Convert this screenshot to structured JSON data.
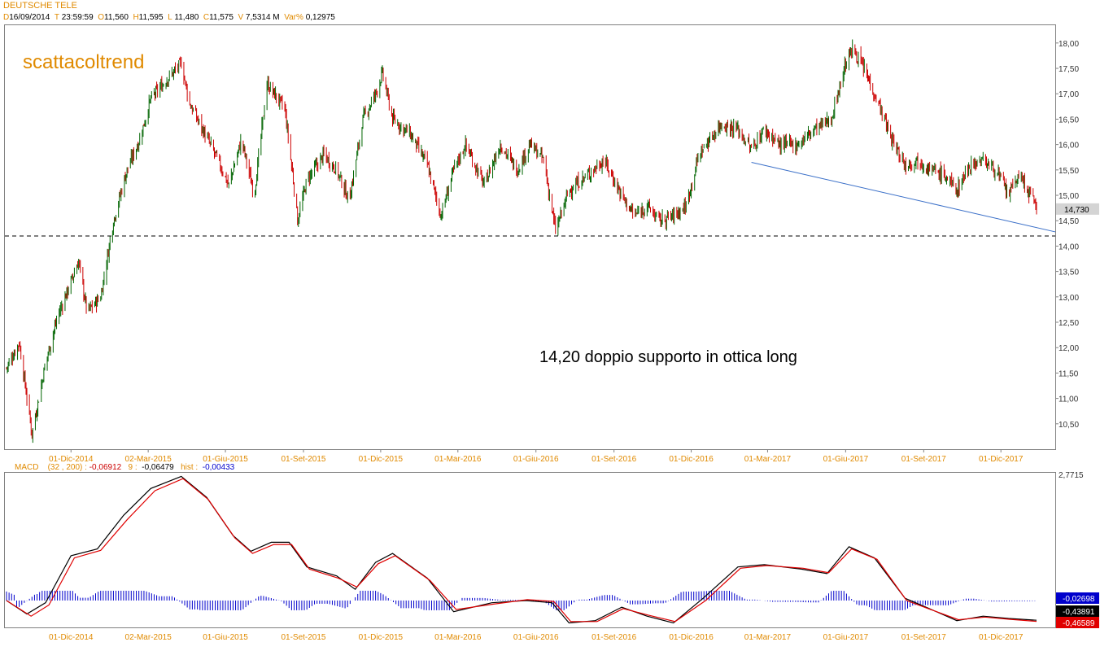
{
  "header": {
    "title": "DEUTSCHE TELE",
    "fields": [
      {
        "k": "D",
        "v": "16/09/2014"
      },
      {
        "k": "T",
        "v": "23:59:59"
      },
      {
        "k": "O",
        "v": "11,560"
      },
      {
        "k": "H",
        "v": "11,595"
      },
      {
        "k": "L",
        "v": "11,480"
      },
      {
        "k": "C",
        "v": "11,575"
      },
      {
        "k": "V",
        "v": "7,5314 M"
      },
      {
        "k": "Var%",
        "v": "0,12975"
      }
    ]
  },
  "watermark": "scattacoltrend",
  "annotation": "14,20 doppio supporto in ottica long",
  "macd_header": {
    "label": "MACD",
    "params": "(32 , 200) :",
    "macd_value": "-0,06912",
    "signal_label": "9 :",
    "signal_value": "-0,06479",
    "hist_label": "hist :",
    "hist_value": "-0,00433"
  },
  "colors": {
    "accent": "#e08a00",
    "bull": "#006400",
    "bear": "#cc0000",
    "trendline": "#3a6fc8",
    "macd_line": "#000000",
    "signal_line": "#e00000",
    "histogram": "#0000cc"
  },
  "chart_data": [
    {
      "type": "candlestick",
      "title": "DEUTSCHE TELE",
      "x_labels": [
        "01-Dic-2014",
        "02-Mar-2015",
        "01-Giu-2015",
        "01-Set-2015",
        "01-Dic-2015",
        "01-Mar-2016",
        "01-Giu-2016",
        "01-Set-2016",
        "01-Dic-2016",
        "01-Mar-2017",
        "01-Giu-2017",
        "01-Set-2017",
        "01-Dic-2017"
      ],
      "y_ticks": [
        "10,50",
        "11,00",
        "11,50",
        "12,00",
        "12,50",
        "13,00",
        "13,50",
        "14,00",
        "14,50",
        "15,00",
        "15,50",
        "16,00",
        "16,50",
        "17,00",
        "17,50",
        "18,00"
      ],
      "ylim": [
        10.0,
        18.35
      ],
      "last_price": "14,730",
      "support_level": 14.2,
      "price_path": [
        [
          "2014-09-16",
          11.6
        ],
        [
          "2014-10-01",
          12.1
        ],
        [
          "2014-10-16",
          10.3
        ],
        [
          "2014-11-01",
          11.7
        ],
        [
          "2014-11-15",
          12.6
        ],
        [
          "2014-12-01",
          13.3
        ],
        [
          "2014-12-10",
          13.7
        ],
        [
          "2014-12-20",
          12.7
        ],
        [
          "2015-01-05",
          13.0
        ],
        [
          "2015-01-20",
          14.5
        ],
        [
          "2015-02-05",
          15.5
        ],
        [
          "2015-02-20",
          16.1
        ],
        [
          "2015-03-05",
          16.9
        ],
        [
          "2015-03-25",
          17.3
        ],
        [
          "2015-04-10",
          17.6
        ],
        [
          "2015-04-20",
          16.8
        ],
        [
          "2015-05-05",
          16.3
        ],
        [
          "2015-05-20",
          15.8
        ],
        [
          "2015-06-05",
          15.2
        ],
        [
          "2015-06-20",
          16.1
        ],
        [
          "2015-07-05",
          15.0
        ],
        [
          "2015-07-20",
          17.2
        ],
        [
          "2015-08-10",
          16.7
        ],
        [
          "2015-08-20",
          15.3
        ],
        [
          "2015-08-25",
          14.5
        ],
        [
          "2015-09-05",
          15.3
        ],
        [
          "2015-09-25",
          15.8
        ],
        [
          "2015-10-10",
          15.5
        ],
        [
          "2015-10-25",
          14.9
        ],
        [
          "2015-11-10",
          16.5
        ],
        [
          "2015-11-25",
          17.0
        ],
        [
          "2015-12-03",
          17.4
        ],
        [
          "2015-12-15",
          16.5
        ],
        [
          "2016-01-05",
          16.2
        ],
        [
          "2016-01-25",
          15.6
        ],
        [
          "2016-02-10",
          14.6
        ],
        [
          "2016-02-25",
          15.5
        ],
        [
          "2016-03-10",
          16.0
        ],
        [
          "2016-04-01",
          15.2
        ],
        [
          "2016-04-20",
          16.0
        ],
        [
          "2016-05-10",
          15.5
        ],
        [
          "2016-05-25",
          16.0
        ],
        [
          "2016-06-10",
          15.7
        ],
        [
          "2016-06-24",
          14.3
        ],
        [
          "2016-07-10",
          15.1
        ],
        [
          "2016-08-01",
          15.4
        ],
        [
          "2016-08-20",
          15.7
        ],
        [
          "2016-09-10",
          15.0
        ],
        [
          "2016-09-25",
          14.6
        ],
        [
          "2016-10-10",
          14.8
        ],
        [
          "2016-10-25",
          14.5
        ],
        [
          "2016-11-10",
          14.6
        ],
        [
          "2016-11-25",
          14.8
        ],
        [
          "2016-12-10",
          15.8
        ],
        [
          "2017-01-05",
          16.4
        ],
        [
          "2017-01-25",
          16.3
        ],
        [
          "2017-02-10",
          15.9
        ],
        [
          "2017-02-25",
          16.3
        ],
        [
          "2017-03-15",
          16.0
        ],
        [
          "2017-04-05",
          16.0
        ],
        [
          "2017-04-25",
          16.3
        ],
        [
          "2017-05-15",
          16.5
        ],
        [
          "2017-06-01",
          17.6
        ],
        [
          "2017-06-10",
          17.9
        ],
        [
          "2017-06-25",
          17.4
        ],
        [
          "2017-07-10",
          16.8
        ],
        [
          "2017-07-25",
          16.1
        ],
        [
          "2017-08-10",
          15.6
        ],
        [
          "2017-08-25",
          15.7
        ],
        [
          "2017-09-10",
          15.5
        ],
        [
          "2017-09-25",
          15.4
        ],
        [
          "2017-10-10",
          15.1
        ],
        [
          "2017-10-25",
          15.6
        ],
        [
          "2017-11-10",
          15.7
        ],
        [
          "2017-11-25",
          15.5
        ],
        [
          "2017-12-10",
          15.0
        ],
        [
          "2017-12-22",
          15.4
        ],
        [
          "2018-01-05",
          15.0
        ],
        [
          "2018-01-12",
          14.73
        ]
      ]
    },
    {
      "type": "line",
      "title": "MACD (32 , 200)",
      "y_ticks": [
        "2,7715"
      ],
      "ylim": [
        -0.6,
        2.85
      ],
      "value_labels": [
        "-0,02698",
        "-0,43891",
        "-0,46589"
      ],
      "series": [
        {
          "name": "MACD",
          "points": [
            [
              "2014-09-16",
              0.0
            ],
            [
              "2014-10-10",
              -0.3
            ],
            [
              "2014-11-01",
              -0.05
            ],
            [
              "2014-12-01",
              1.0
            ],
            [
              "2015-01-01",
              1.15
            ],
            [
              "2015-02-01",
              1.9
            ],
            [
              "2015-03-05",
              2.5
            ],
            [
              "2015-04-10",
              2.77
            ],
            [
              "2015-05-10",
              2.3
            ],
            [
              "2015-06-10",
              1.45
            ],
            [
              "2015-07-01",
              1.1
            ],
            [
              "2015-07-25",
              1.3
            ],
            [
              "2015-08-15",
              1.3
            ],
            [
              "2015-09-05",
              0.75
            ],
            [
              "2015-10-10",
              0.55
            ],
            [
              "2015-11-01",
              0.25
            ],
            [
              "2015-11-25",
              0.85
            ],
            [
              "2015-12-15",
              1.05
            ],
            [
              "2016-01-25",
              0.5
            ],
            [
              "2016-02-25",
              -0.25
            ],
            [
              "2016-04-10",
              -0.05
            ],
            [
              "2016-05-20",
              0.0
            ],
            [
              "2016-06-20",
              -0.05
            ],
            [
              "2016-07-10",
              -0.5
            ],
            [
              "2016-08-10",
              -0.45
            ],
            [
              "2016-09-10",
              -0.15
            ],
            [
              "2016-10-10",
              -0.35
            ],
            [
              "2016-11-10",
              -0.5
            ],
            [
              "2016-12-15",
              0.05
            ],
            [
              "2017-01-25",
              0.75
            ],
            [
              "2017-02-25",
              0.8
            ],
            [
              "2017-04-10",
              0.7
            ],
            [
              "2017-05-10",
              0.6
            ],
            [
              "2017-06-05",
              1.2
            ],
            [
              "2017-07-05",
              0.95
            ],
            [
              "2017-08-10",
              0.05
            ],
            [
              "2017-09-10",
              -0.2
            ],
            [
              "2017-10-10",
              -0.45
            ],
            [
              "2017-11-10",
              -0.35
            ],
            [
              "2017-12-10",
              -0.4
            ],
            [
              "2018-01-12",
              -0.44
            ]
          ]
        },
        {
          "name": "Signal",
          "points": [
            [
              "2014-09-16",
              0.0
            ],
            [
              "2014-10-15",
              -0.35
            ],
            [
              "2014-11-05",
              -0.1
            ],
            [
              "2014-12-05",
              0.95
            ],
            [
              "2015-01-05",
              1.12
            ],
            [
              "2015-02-05",
              1.8
            ],
            [
              "2015-03-10",
              2.45
            ],
            [
              "2015-04-12",
              2.72
            ],
            [
              "2015-05-12",
              2.25
            ],
            [
              "2015-06-12",
              1.4
            ],
            [
              "2015-07-03",
              1.05
            ],
            [
              "2015-07-28",
              1.25
            ],
            [
              "2015-08-18",
              1.25
            ],
            [
              "2015-09-08",
              0.7
            ],
            [
              "2015-10-12",
              0.5
            ],
            [
              "2015-11-03",
              0.3
            ],
            [
              "2015-11-28",
              0.82
            ],
            [
              "2015-12-18",
              1.0
            ],
            [
              "2016-01-28",
              0.45
            ],
            [
              "2016-02-28",
              -0.2
            ],
            [
              "2016-04-12",
              -0.08
            ],
            [
              "2016-05-22",
              0.02
            ],
            [
              "2016-06-22",
              -0.02
            ],
            [
              "2016-07-12",
              -0.47
            ],
            [
              "2016-08-12",
              -0.47
            ],
            [
              "2016-09-12",
              -0.18
            ],
            [
              "2016-10-12",
              -0.33
            ],
            [
              "2016-11-12",
              -0.47
            ],
            [
              "2016-12-18",
              0.0
            ],
            [
              "2017-01-28",
              0.72
            ],
            [
              "2017-02-28",
              0.78
            ],
            [
              "2017-04-12",
              0.72
            ],
            [
              "2017-05-12",
              0.62
            ],
            [
              "2017-06-08",
              1.15
            ],
            [
              "2017-07-08",
              0.92
            ],
            [
              "2017-08-12",
              0.0
            ],
            [
              "2017-09-12",
              -0.22
            ],
            [
              "2017-10-12",
              -0.43
            ],
            [
              "2017-11-12",
              -0.37
            ],
            [
              "2017-12-12",
              -0.42
            ],
            [
              "2018-01-12",
              -0.466
            ]
          ]
        }
      ]
    }
  ]
}
